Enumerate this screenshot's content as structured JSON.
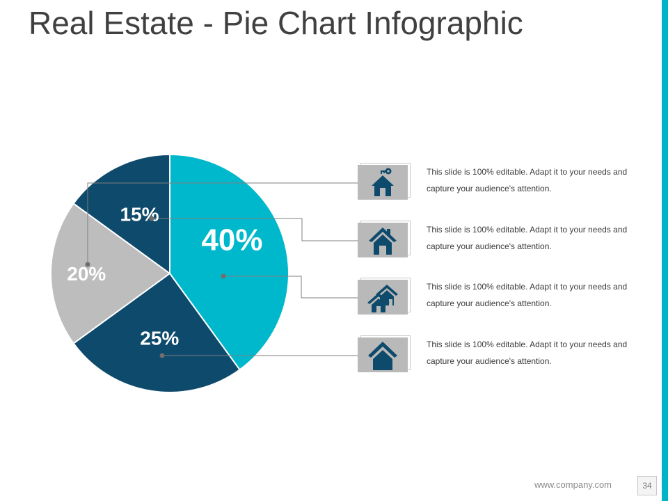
{
  "slide": {
    "title": "Real Estate - Pie Chart Infographic",
    "footer_url": "www.company.com",
    "page_number": "34"
  },
  "colors": {
    "accent_bar": "#00b4c8",
    "teal": "#00b8cc",
    "navy": "#0e4a6b",
    "gray": "#bdbdbd",
    "icon_fill": "#0e4a6b"
  },
  "chart_data": {
    "type": "pie",
    "title": "",
    "slices": [
      {
        "label": "40%",
        "value": 40,
        "color": "#00b8cc"
      },
      {
        "label": "25%",
        "value": 25,
        "color": "#0e4a6b"
      },
      {
        "label": "20%",
        "value": 20,
        "color": "#bdbdbd"
      },
      {
        "label": "15%",
        "value": 15,
        "color": "#0e4a6b"
      }
    ]
  },
  "items": [
    {
      "icon": "house-key-icon",
      "text": "This slide is 100% editable. Adapt it to your needs and capture your audience's attention."
    },
    {
      "icon": "house-chimney-icon",
      "text": "This slide is 100% editable. Adapt it to your needs and capture your audience's attention."
    },
    {
      "icon": "houses-icon",
      "text": "This slide is 100% editable. Adapt it to your needs and capture your audience's attention."
    },
    {
      "icon": "house-icon",
      "text": "This slide is 100% editable. Adapt it to your needs and capture your audience's attention."
    }
  ]
}
